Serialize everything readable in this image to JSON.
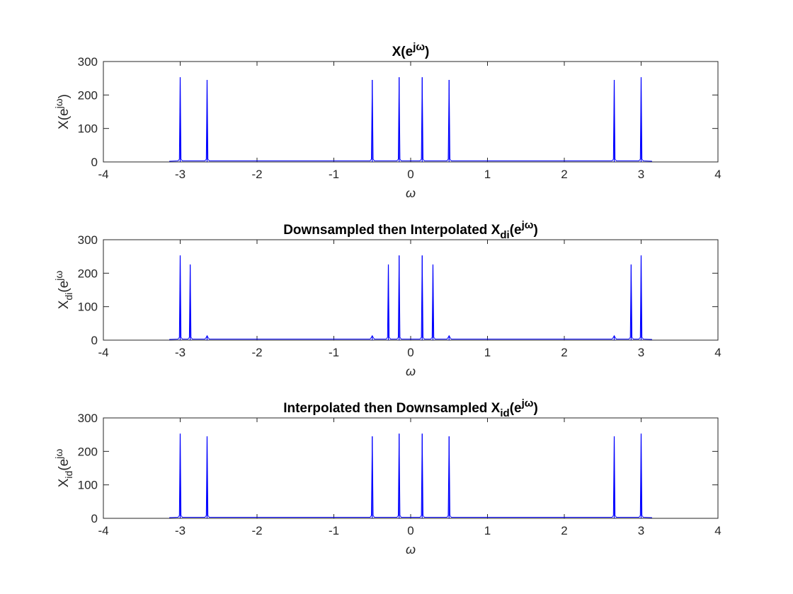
{
  "chart_data": [
    {
      "type": "line",
      "title_parts": [
        {
          "text": "X(e",
          "style": "normal"
        },
        {
          "text": "jω",
          "style": "sup"
        },
        {
          "text": ")",
          "style": "normal"
        }
      ],
      "xlabel": "ω",
      "ylabel_parts": [
        {
          "text": "X(e",
          "style": "normal"
        },
        {
          "text": "jω",
          "style": "sup"
        },
        {
          "text": ")",
          "style": "normal"
        }
      ],
      "xlim": [
        -4,
        4
      ],
      "ylim": [
        0,
        300
      ],
      "xticks": [
        -4,
        -3,
        -2,
        -1,
        0,
        1,
        2,
        3,
        4
      ],
      "yticks": [
        0,
        100,
        200,
        300
      ],
      "x_extent": [
        -3.1416,
        3.1416
      ],
      "grid": false,
      "line_color": "#0000ff",
      "peaks": [
        {
          "x": -3.0,
          "y": 253
        },
        {
          "x": -2.65,
          "y": 245
        },
        {
          "x": -0.5,
          "y": 245
        },
        {
          "x": -0.15,
          "y": 253
        },
        {
          "x": 0.15,
          "y": 253
        },
        {
          "x": 0.5,
          "y": 245
        },
        {
          "x": 2.65,
          "y": 245
        },
        {
          "x": 3.0,
          "y": 253
        }
      ]
    },
    {
      "type": "line",
      "title_parts": [
        {
          "text": "Downsampled then Interpolated X",
          "style": "normal"
        },
        {
          "text": "di",
          "style": "sub"
        },
        {
          "text": "(e",
          "style": "normal"
        },
        {
          "text": "jω",
          "style": "sup"
        },
        {
          "text": ")",
          "style": "normal"
        }
      ],
      "xlabel": "ω",
      "ylabel_parts": [
        {
          "text": "X",
          "style": "normal"
        },
        {
          "text": "di",
          "style": "sub"
        },
        {
          "text": "(e",
          "style": "normal"
        },
        {
          "text": "jω",
          "style": "sup"
        }
      ],
      "xlim": [
        -4,
        4
      ],
      "ylim": [
        0,
        300
      ],
      "xticks": [
        -4,
        -3,
        -2,
        -1,
        0,
        1,
        2,
        3,
        4
      ],
      "yticks": [
        0,
        100,
        200,
        300
      ],
      "x_extent": [
        -3.1416,
        3.1416
      ],
      "grid": false,
      "line_color": "#0000ff",
      "peaks": [
        {
          "x": -3.0,
          "y": 253
        },
        {
          "x": -2.87,
          "y": 226
        },
        {
          "x": -2.65,
          "y": 13
        },
        {
          "x": -0.5,
          "y": 13
        },
        {
          "x": -0.29,
          "y": 226
        },
        {
          "x": -0.15,
          "y": 253
        },
        {
          "x": 0.15,
          "y": 253
        },
        {
          "x": 0.29,
          "y": 226
        },
        {
          "x": 0.5,
          "y": 13
        },
        {
          "x": 2.65,
          "y": 13
        },
        {
          "x": 2.87,
          "y": 226
        },
        {
          "x": 3.0,
          "y": 253
        }
      ]
    },
    {
      "type": "line",
      "title_parts": [
        {
          "text": "Interpolated then Downsampled X",
          "style": "normal"
        },
        {
          "text": "id",
          "style": "sub"
        },
        {
          "text": "(e",
          "style": "normal"
        },
        {
          "text": "jω",
          "style": "sup"
        },
        {
          "text": ")",
          "style": "normal"
        }
      ],
      "xlabel": "ω",
      "ylabel_parts": [
        {
          "text": "X",
          "style": "normal"
        },
        {
          "text": "id",
          "style": "sub"
        },
        {
          "text": "(e",
          "style": "normal"
        },
        {
          "text": "jω",
          "style": "sup"
        }
      ],
      "xlim": [
        -4,
        4
      ],
      "ylim": [
        0,
        300
      ],
      "xticks": [
        -4,
        -3,
        -2,
        -1,
        0,
        1,
        2,
        3,
        4
      ],
      "yticks": [
        0,
        100,
        200,
        300
      ],
      "x_extent": [
        -3.1416,
        3.1416
      ],
      "grid": false,
      "line_color": "#0000ff",
      "peaks": [
        {
          "x": -3.0,
          "y": 253
        },
        {
          "x": -2.65,
          "y": 245
        },
        {
          "x": -0.5,
          "y": 245
        },
        {
          "x": -0.15,
          "y": 253
        },
        {
          "x": 0.15,
          "y": 253
        },
        {
          "x": 0.5,
          "y": 245
        },
        {
          "x": 2.65,
          "y": 245
        },
        {
          "x": 3.0,
          "y": 253
        }
      ]
    }
  ]
}
